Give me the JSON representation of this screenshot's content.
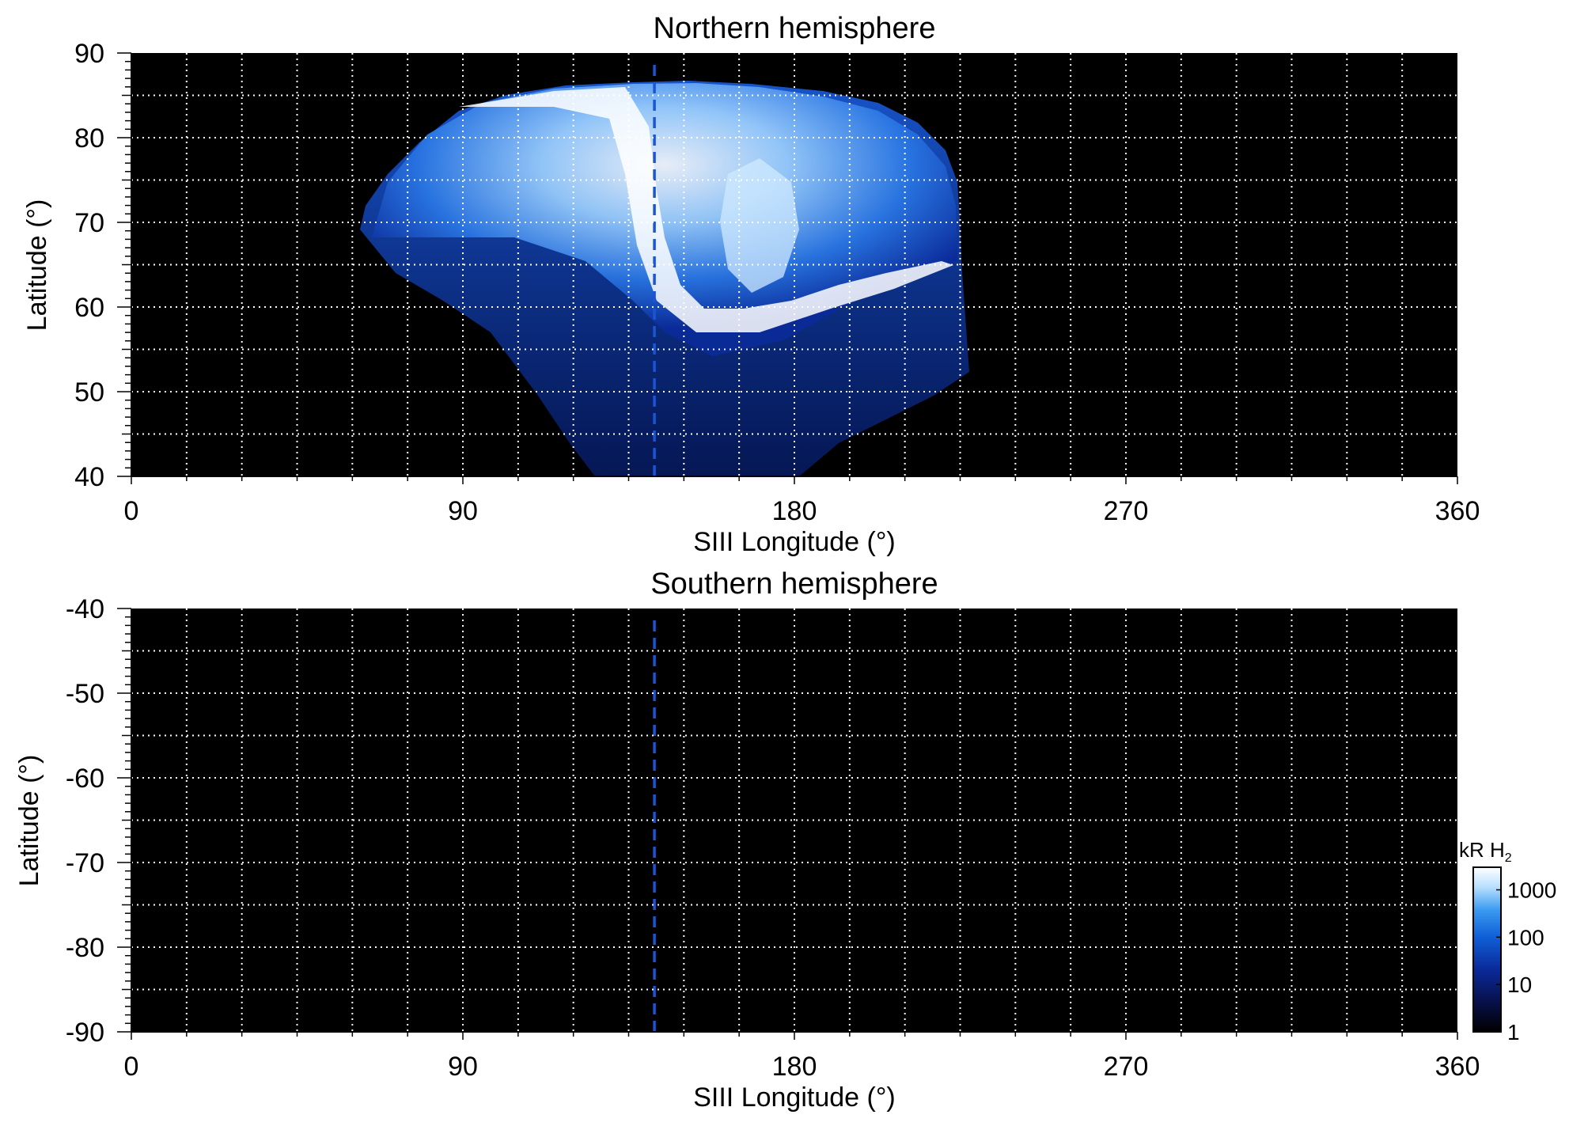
{
  "chart_data": [
    {
      "type": "heatmap",
      "title": "Northern hemisphere",
      "xlabel": "SIII Longitude (°)",
      "ylabel": "Latitude (°)",
      "xlim": [
        0,
        360
      ],
      "ylim": [
        40,
        90
      ],
      "x_ticks": [
        0,
        90,
        180,
        270,
        360
      ],
      "y_ticks": [
        40,
        50,
        60,
        70,
        80,
        90
      ],
      "grid": true,
      "dashed_marker_longitude": 142,
      "emission_region": {
        "description": "auroral brightness map covering longitudes ~60-230, latitudes ~40-86",
        "bright_arc_longitudes": [
          135,
          230
        ],
        "main_oval_latitude_range": [
          62,
          86
        ]
      }
    },
    {
      "type": "heatmap",
      "title": "Southern hemisphere",
      "xlabel": "SIII Longitude (°)",
      "ylabel": "Latitude (°)",
      "xlim": [
        0,
        360
      ],
      "ylim": [
        -90,
        -40
      ],
      "x_ticks": [
        0,
        90,
        180,
        270,
        360
      ],
      "y_ticks": [
        -40,
        -50,
        -60,
        -70,
        -80,
        -90
      ],
      "grid": true,
      "dashed_marker_longitude": 142,
      "emission_region": null
    }
  ],
  "colorbar": {
    "label_main": "kR H",
    "label_sub": "2",
    "scale": "log",
    "ticks": [
      "1000",
      "100",
      "10",
      "1"
    ],
    "colors": [
      "#000000",
      "#08104a",
      "#0a2a9a",
      "#1060d8",
      "#3a9af0",
      "#b8e0ff",
      "#ffffff"
    ]
  }
}
